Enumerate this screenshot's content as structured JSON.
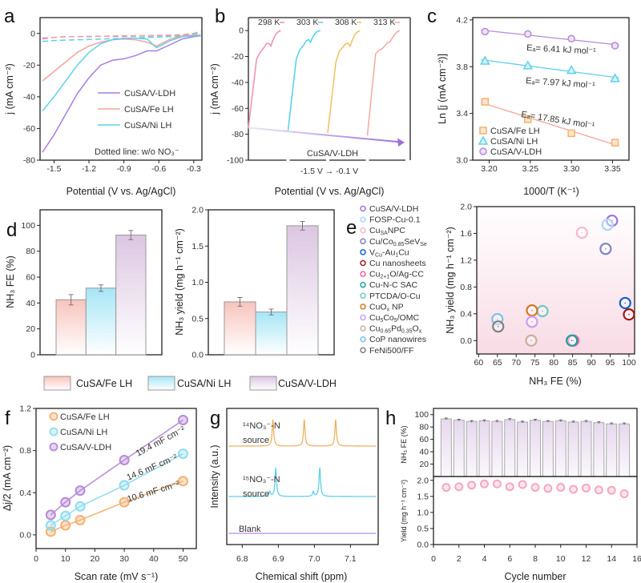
{
  "panel_labels": [
    "a",
    "b",
    "c",
    "d",
    "e",
    "f",
    "g",
    "h"
  ],
  "chart_data": [
    {
      "type": "line",
      "xlabel": "Potential (V vs. Ag/AgCl)",
      "ylabel": "j (mA cm⁻²)",
      "xticks": [
        "-1.5",
        "-1.2",
        "-0.9",
        "-0.6",
        "-0.3"
      ],
      "yticks": [
        "-80",
        "-60",
        "-40",
        "-20",
        "0"
      ],
      "xlim": [
        -1.62,
        -0.23
      ],
      "ylim": [
        -80,
        10
      ],
      "annotation": "Dotted line: w/o NO₃⁻",
      "x": [
        -1.6,
        -1.5,
        -1.4,
        -1.3,
        -1.2,
        -1.1,
        -1.0,
        -0.9,
        -0.8,
        -0.7,
        -0.62,
        -0.5,
        -0.4,
        -0.3,
        -0.24
      ],
      "series": [
        {
          "name": "CuSA/V-LDH",
          "color": "#a77de0",
          "y": [
            -75,
            -64,
            -51,
            -38,
            -28,
            -20,
            -17,
            -16,
            -14,
            -11,
            -11,
            -7,
            -3.5,
            -2,
            -1.5
          ]
        },
        {
          "name": "CuSA/Fe LH",
          "color": "#f3a59c",
          "y": [
            -30,
            -24,
            -18,
            -12,
            -8,
            -5.5,
            -4,
            -3.5,
            -4,
            -5.5,
            -8,
            -3.5,
            -1.5,
            -1,
            -1
          ]
        },
        {
          "name": "CuSA/Ni LH",
          "color": "#5fd0ea",
          "y": [
            -49,
            -40,
            -30,
            -20,
            -12,
            -6.5,
            -4,
            -3,
            -3,
            -3.5,
            -9,
            -4.5,
            -2,
            -1.5,
            -1.5
          ]
        }
      ],
      "dashed_series": [
        {
          "color": "#a77de0",
          "y": [
            -3,
            -2.5,
            -2,
            -2,
            -2,
            -1.8,
            -1.8,
            -1.8,
            -1.6,
            -1.5,
            -1.4,
            -1.2,
            -0.8,
            0,
            1
          ]
        },
        {
          "color": "#f3a59c",
          "y": [
            -3.5,
            -2.5,
            -2,
            -2,
            -1.8,
            -1.8,
            -1.6,
            -1.5,
            -1.4,
            -1.3,
            -1.2,
            -1,
            -0.8,
            0,
            1.5
          ]
        },
        {
          "color": "#5fd0ea",
          "y": [
            -5,
            -4.5,
            -4.2,
            -4,
            -3.8,
            -3.5,
            -3.3,
            -3,
            -2.8,
            -2.5,
            -2.3,
            -2,
            -1.5,
            -0.5,
            0.5
          ]
        }
      ]
    },
    {
      "type": "line",
      "xlabel": "Potential (V vs. Ag/AgCl)",
      "range_label": "-1.5 V → -0.1 V",
      "ylabel": "j (mA cm⁻²)",
      "yticks": [
        "-100",
        "-80",
        "-60",
        "-40",
        "-20",
        "0"
      ],
      "ylim": [
        -100,
        10
      ],
      "annotation": "CuSA/V-LDH",
      "x": [
        -1.5,
        -1.21,
        -1.09,
        -0.975,
        -0.86,
        -0.77,
        -0.71,
        -0.625,
        -0.54,
        -0.45,
        -0.36
      ],
      "series": [
        {
          "name": "298 K",
          "color": "#f58bb5",
          "y": [
            -75,
            -22,
            -17,
            -14,
            -10,
            -10,
            -12,
            -7,
            -3,
            -1,
            0
          ]
        },
        {
          "name": "303 K",
          "color": "#4fd0f0",
          "y": [
            -77,
            -22,
            -15,
            -12,
            -8,
            -7,
            -9,
            -5,
            -2,
            -0.5,
            0
          ]
        },
        {
          "name": "308 K",
          "color": "#efc060",
          "y": [
            -79,
            -24,
            -16,
            -13,
            -10,
            -10,
            -12,
            -7,
            -3,
            -1,
            0
          ]
        },
        {
          "name": "313 K",
          "color": "#f6a8a0",
          "y": [
            -81,
            -18,
            -15,
            -14,
            -11,
            -9,
            -9,
            -6,
            -3,
            -1,
            0
          ]
        }
      ]
    },
    {
      "type": "scatter",
      "xlabel": "1000/T (K⁻¹)",
      "ylabel": "Ln [j (mA cm⁻²)]",
      "xticks": [
        "3.20",
        "3.25",
        "3.30",
        "3.35"
      ],
      "yticks": [
        "3.0",
        "3.4",
        "3.8",
        "4.2"
      ],
      "xlim": [
        3.18,
        3.37
      ],
      "ylim": [
        3.0,
        4.22
      ],
      "x": [
        3.195,
        3.247,
        3.3,
        3.353
      ],
      "series": [
        {
          "name": "CuSA/Fe LH",
          "color": "#f5b070",
          "marker": "square",
          "y": [
            3.5,
            3.35,
            3.23,
            3.15
          ],
          "fit_color": "#f3a59c",
          "ea": "Eₐ= 17.85 kJ mol⁻¹"
        },
        {
          "name": "CuSA/Ni LH",
          "color": "#5fd0ea",
          "marker": "triangle",
          "y": [
            3.85,
            3.81,
            3.77,
            3.7
          ],
          "fit_color": "#5fd0ea",
          "ea": "Eₐ= 7.97 kJ mol⁻¹"
        },
        {
          "name": "CuSA/V-LDH",
          "color": "#b58ad8",
          "marker": "circle",
          "y": [
            4.1,
            4.08,
            4.04,
            3.98
          ],
          "fit_color": "#b58ad8",
          "ea": "Eₐ= 6.41 kJ mol⁻¹"
        }
      ]
    },
    {
      "type": "bar",
      "ylabel": "NH₃ FE (%)",
      "yticks": [
        "0",
        "20",
        "40",
        "60",
        "80",
        "100"
      ],
      "ylim": [
        0,
        112
      ],
      "categories": [
        "CuSA/Fe LH",
        "CuSA/Ni LH",
        "CuSA/V-LDH"
      ],
      "values": [
        42.5,
        51.5,
        92.5
      ],
      "errors": [
        4,
        2.5,
        3.5
      ]
    },
    {
      "type": "bar",
      "ylabel": "NH₃ yield (mg h⁻¹ cm⁻²)",
      "yticks": [
        "0.0",
        "0.5",
        "1.0",
        "1.5",
        "2.0"
      ],
      "ylim": [
        0,
        2.0
      ],
      "categories": [
        "CuSA/Fe LH",
        "CuSA/Ni LH",
        "CuSA/V-LDH"
      ],
      "values": [
        0.73,
        0.59,
        1.78
      ],
      "errors": [
        0.06,
        0.04,
        0.06
      ]
    },
    {
      "type": "scatter",
      "xlabel": "NH₃ FE (%)",
      "ylabel": "NH₃ yield (mg h⁻¹ cm⁻²)",
      "xticks": [
        "60",
        "65",
        "70",
        "75",
        "80",
        "85",
        "90",
        "95",
        "100"
      ],
      "yticks": [
        "0.0",
        "0.4",
        "0.8",
        "1.2",
        "1.6",
        "2.0"
      ],
      "xlim": [
        59.5,
        101.5
      ],
      "ylim": [
        -0.2,
        2.0
      ],
      "points": [
        {
          "label_parts": [
            "CuSA/V-LDH"
          ],
          "color": "#a070e0",
          "x": 95.5,
          "y": 1.79
        },
        {
          "label_parts": [
            "FOSP-Cu-0.1"
          ],
          "color": "#a8d8f8",
          "x": 94.3,
          "y": 1.73
        },
        {
          "label_parts": [
            "Cu",
            "SA",
            "NPC"
          ],
          "color": "#f8b8d0",
          "x": 87.5,
          "y": 1.61
        },
        {
          "label_parts": [
            "Cu/Co",
            "0.85",
            "SeV",
            "Se"
          ],
          "color": "#8080c0",
          "x": 93.8,
          "y": 1.37
        },
        {
          "label_parts": [
            "V",
            "Cu",
            "-Au",
            "1",
            "Cu"
          ],
          "color": "#1060d0",
          "x": 99,
          "y": 0.56
        },
        {
          "label_parts": [
            "Cu nanosheets"
          ],
          "color": "#a01818",
          "x": 100,
          "y": 0.39
        },
        {
          "label_parts": [
            "Cu",
            "2+1",
            "O/Ag-CC"
          ],
          "color": "#f060a0",
          "x": 85.2,
          "y": 0.0
        },
        {
          "label_parts": [
            "Cu-N-C SAC"
          ],
          "color": "#20a0a0",
          "x": 84.8,
          "y": 0.0
        },
        {
          "label_parts": [
            "PTCDA/O-Cu"
          ],
          "color": "#70c8c0",
          "x": 77,
          "y": 0.44
        },
        {
          "label_parts": [
            "CuO",
            "x",
            " NP"
          ],
          "color": "#d07a20",
          "x": 74.2,
          "y": 0.45
        },
        {
          "label_parts": [
            "Cu",
            "5",
            "Co",
            "5",
            "/OMC"
          ],
          "color": "#c8a0f0",
          "x": 74.2,
          "y": 0.28
        },
        {
          "label_parts": [
            "Cu",
            "0.65",
            "Pd",
            "0.35",
            "O",
            "x"
          ],
          "color": "#c8b0a0",
          "x": 74,
          "y": 0.0
        },
        {
          "label_parts": [
            "CoP nanowires"
          ],
          "color": "#80c0f0",
          "x": 65,
          "y": 0.32
        },
        {
          "label_parts": [
            "FeNi500/FF"
          ],
          "color": "#808080",
          "x": 65.2,
          "y": 0.21
        }
      ]
    },
    {
      "type": "scatter",
      "xlabel": "Scan rate (mV s⁻¹)",
      "ylabel": "Δj/2 (mA cm⁻²)",
      "xticks": [
        "0",
        "10",
        "20",
        "30",
        "40",
        "50"
      ],
      "yticks": [
        "0.0",
        "0.4",
        "0.8",
        "1.2"
      ],
      "xlim": [
        0,
        54.5
      ],
      "ylim": [
        -0.13,
        1.2
      ],
      "x": [
        5,
        10,
        15,
        30,
        50
      ],
      "series": [
        {
          "name": "CuSA/Fe LH",
          "color": "#f5b070",
          "y": [
            0.03,
            0.09,
            0.14,
            0.31,
            0.51
          ],
          "cdl": "10.6 mF cm⁻²"
        },
        {
          "name": "CuSA/Ni LH",
          "color": "#8fdcf0",
          "y": [
            0.09,
            0.18,
            0.27,
            0.47,
            0.77
          ],
          "cdl": "14.6 mF cm⁻²"
        },
        {
          "name": "CuSA/V-LDH",
          "color": "#b58ad8",
          "y": [
            0.19,
            0.31,
            0.42,
            0.71,
            1.09
          ],
          "cdl": "19.4 mF cm⁻²"
        }
      ]
    },
    {
      "type": "line",
      "xlabel": "Chemical shift (ppm)",
      "ylabel": "Intensity (a.u.)",
      "xticks": [
        "6.8",
        "6.9",
        "7.0",
        "7.1"
      ],
      "xlim": [
        6.757,
        7.177
      ],
      "series": [
        {
          "name_lines": [
            "¹⁴NO₃⁻-N",
            "source"
          ],
          "color": "#efb060",
          "peaks_ppm": [
            6.885,
            6.972,
            7.059
          ]
        },
        {
          "name_lines": [
            "¹⁵NO₃⁻-N",
            "source"
          ],
          "color": "#5fd0ea",
          "peaks_ppm": [
            6.876,
            6.893,
            6.997,
            7.015
          ]
        },
        {
          "name_lines": [
            "Blank"
          ],
          "color": "#b98ae8",
          "peaks_ppm": []
        }
      ]
    },
    {
      "type": "bar",
      "ylabel": "NH₃ FE (%)",
      "ylabel_color": "#c39be6",
      "yticks": [
        "20",
        "40",
        "60",
        "80",
        "100"
      ],
      "ylim": [
        0,
        110
      ],
      "x": [
        1,
        2,
        3,
        4,
        5,
        6,
        7,
        8,
        9,
        10,
        11,
        12,
        13,
        14,
        15
      ],
      "values": [
        93,
        91,
        89,
        90,
        89,
        92,
        88,
        91,
        89,
        90,
        88,
        89,
        87,
        85,
        85
      ]
    },
    {
      "type": "scatter",
      "xlabel": "Cycle number",
      "ylabel": "Yield (mg h⁻¹ cm⁻²)",
      "ylabel_color": "#f58bb5",
      "xticks": [
        "0",
        "2",
        "4",
        "6",
        "8",
        "10",
        "12",
        "14",
        "16"
      ],
      "yticks": [
        "0.0",
        "0.5",
        "1.0",
        "1.5",
        "2.0"
      ],
      "xlim": [
        0,
        16
      ],
      "ylim": [
        0,
        2.12
      ],
      "x": [
        1,
        2,
        3,
        4,
        5,
        6,
        7,
        8,
        9,
        10,
        11,
        12,
        13,
        14,
        15
      ],
      "values": [
        1.78,
        1.8,
        1.85,
        1.89,
        1.89,
        1.8,
        1.87,
        1.78,
        1.75,
        1.78,
        1.72,
        1.76,
        1.7,
        1.69,
        1.58
      ]
    }
  ]
}
